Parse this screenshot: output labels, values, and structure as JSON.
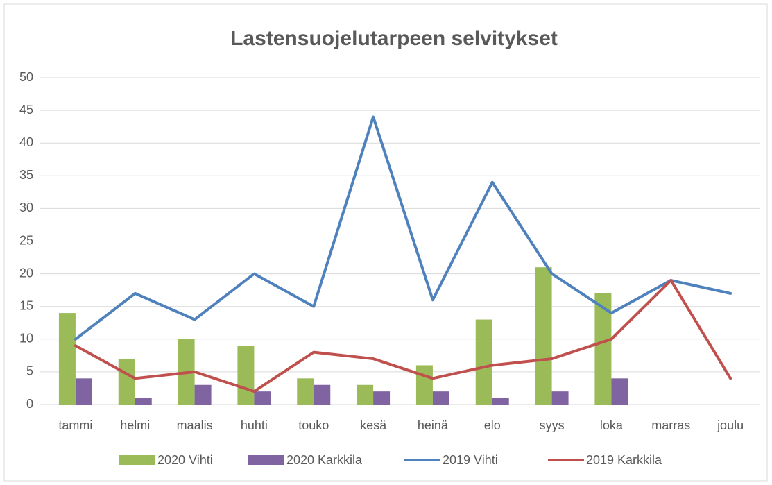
{
  "chart_data": {
    "type": "combo",
    "title": "Lastensuojelutarpeen selvitykset",
    "categories": [
      "tammi",
      "helmi",
      "maalis",
      "huhti",
      "touko",
      "kesä",
      "heinä",
      "elo",
      "syys",
      "loka",
      "marras",
      "joulu"
    ],
    "series": [
      {
        "name": "2020 Vihti",
        "type": "bar",
        "color": "#9bbb59",
        "values": [
          14,
          7,
          10,
          9,
          4,
          3,
          6,
          13,
          21,
          17,
          null,
          null
        ]
      },
      {
        "name": "2020 Karkkila",
        "type": "bar",
        "color": "#8064a2",
        "values": [
          4,
          1,
          3,
          2,
          3,
          2,
          2,
          1,
          2,
          4,
          null,
          null
        ]
      },
      {
        "name": "2019 Vihti",
        "type": "line",
        "color": "#4f81bd",
        "values": [
          10,
          17,
          13,
          20,
          15,
          44,
          16,
          34,
          20,
          14,
          19,
          17
        ]
      },
      {
        "name": "2019 Karkkila",
        "type": "line",
        "color": "#c0504d",
        "values": [
          9,
          4,
          5,
          2,
          8,
          7,
          4,
          6,
          7,
          10,
          19,
          4
        ]
      }
    ],
    "ylim": [
      0,
      50
    ],
    "yticks": [
      0,
      5,
      10,
      15,
      20,
      25,
      30,
      35,
      40,
      45,
      50
    ],
    "grid": true,
    "legend": "bottom"
  }
}
